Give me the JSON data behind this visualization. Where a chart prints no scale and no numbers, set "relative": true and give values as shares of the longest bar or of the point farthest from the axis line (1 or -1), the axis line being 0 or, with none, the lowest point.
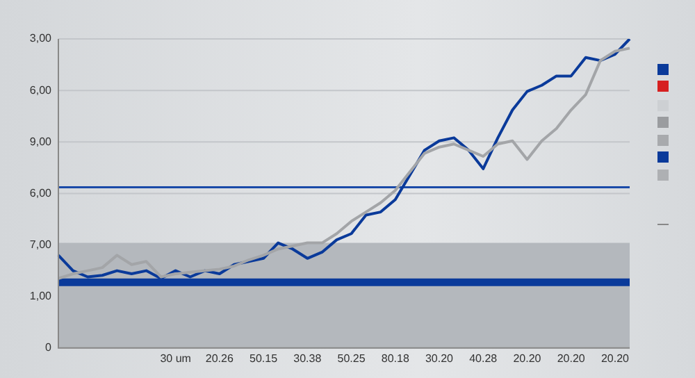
{
  "chart_data": {
    "type": "line",
    "relative": true,
    "categories": [
      null,
      null,
      null,
      null,
      null,
      null,
      null,
      null,
      "30 um",
      null,
      null,
      "20.26",
      null,
      null,
      "50.15",
      null,
      null,
      "30.38",
      null,
      null,
      "50.25",
      null,
      null,
      "80.18",
      null,
      null,
      "30.20",
      null,
      null,
      "40.28",
      null,
      null,
      "20.20",
      null,
      null,
      "20.20",
      null,
      null,
      "20.20",
      null
    ],
    "annotations": [
      "3,00",
      "6,00",
      "9,00",
      "6,00",
      "7,00",
      "1,00",
      "0"
    ],
    "grid": "y",
    "bands": [
      {
        "axis": "y",
        "from": 0,
        "to": 0.34,
        "color": "#b4b8bd"
      },
      {
        "axis": "y",
        "from": 0.2,
        "to": 0.225,
        "color": "#0a3a9a"
      }
    ],
    "ref_lines": [
      {
        "axis": "y",
        "value": 0.52,
        "color": "#1a4aa8"
      }
    ],
    "series": [
      {
        "color": "#a3a5a8",
        "values": [
          0.225,
          0.24,
          0.25,
          0.26,
          0.3,
          0.27,
          0.28,
          0.23,
          0.24,
          0.245,
          0.25,
          0.255,
          0.265,
          0.285,
          0.3,
          0.32,
          0.33,
          0.34,
          0.34,
          0.37,
          0.41,
          0.44,
          0.47,
          0.51,
          0.57,
          0.63,
          0.65,
          0.66,
          0.64,
          0.62,
          0.66,
          0.67,
          0.61,
          0.67,
          0.71,
          0.77,
          0.82,
          0.93,
          0.96,
          0.97
        ]
      },
      {
        "color": "#0a3a9a",
        "values": [
          0.3,
          0.25,
          0.23,
          0.235,
          0.25,
          0.24,
          0.25,
          0.225,
          0.25,
          0.23,
          0.25,
          0.24,
          0.27,
          0.28,
          0.29,
          0.34,
          0.32,
          0.29,
          0.31,
          0.35,
          0.37,
          0.43,
          0.44,
          0.48,
          0.56,
          0.64,
          0.67,
          0.68,
          0.64,
          0.58,
          0.68,
          0.77,
          0.83,
          0.85,
          0.88,
          0.88,
          0.94,
          0.93,
          0.95,
          1
        ]
      }
    ]
  }
}
